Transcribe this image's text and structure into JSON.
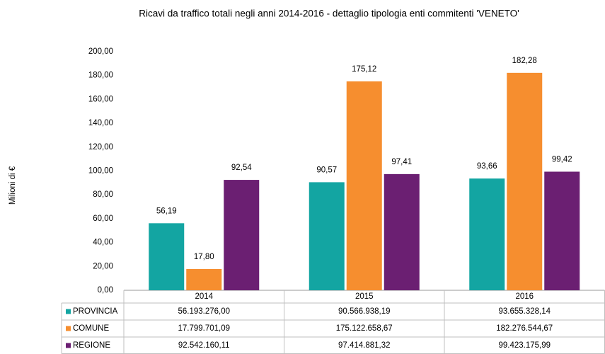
{
  "chart_data": {
    "type": "bar",
    "title": "Ricavi da traffico totali negli anni 2014-2016 - dettaglio tipologia enti commitenti 'VENETO'",
    "y_label": "Milioni di €",
    "categories": [
      "2014",
      "2015",
      "2016"
    ],
    "series": [
      {
        "name": "PROVINCIA",
        "color": "#13a5a2",
        "values": [
          56.19,
          90.57,
          93.66
        ],
        "value_labels": [
          "56,19",
          "90,57",
          "93,66"
        ],
        "table_values": [
          "56.193.276,00",
          "90.566.938,19",
          "93.655.328,14"
        ]
      },
      {
        "name": "COMUNE",
        "color": "#f68e2f",
        "values": [
          17.8,
          175.12,
          182.28
        ],
        "value_labels": [
          "17,80",
          "175,12",
          "182,28"
        ],
        "table_values": [
          "17.799.701,09",
          "175.122.658,67",
          "182.276.544,67"
        ]
      },
      {
        "name": "REGIONE",
        "color": "#6b1f72",
        "values": [
          92.54,
          97.41,
          99.42
        ],
        "value_labels": [
          "92,54",
          "97,41",
          "99,42"
        ],
        "table_values": [
          "92.542.160,11",
          "97.414.881,32",
          "99.423.175,99"
        ]
      }
    ],
    "ylim": [
      0,
      200
    ],
    "yticks": [
      {
        "value": 0,
        "label": "0,00"
      },
      {
        "value": 20,
        "label": "20,00"
      },
      {
        "value": 40,
        "label": "40,00"
      },
      {
        "value": 60,
        "label": "60,00"
      },
      {
        "value": 80,
        "label": "80,00"
      },
      {
        "value": 100,
        "label": "100,00"
      },
      {
        "value": 120,
        "label": "120,00"
      },
      {
        "value": 140,
        "label": "140,00"
      },
      {
        "value": 160,
        "label": "160,00"
      },
      {
        "value": 180,
        "label": "180,00"
      },
      {
        "value": 200,
        "label": "200,00"
      }
    ],
    "grid": false
  }
}
